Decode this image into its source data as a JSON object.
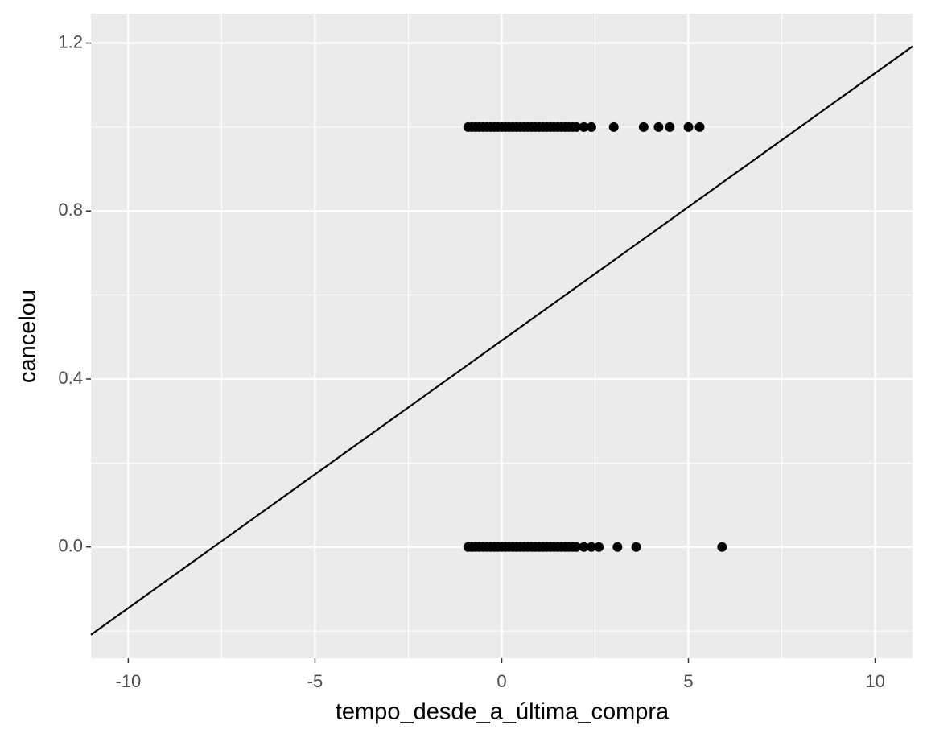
{
  "chart_data": {
    "type": "scatter",
    "x_label": "tempo_desde_a_última_compra",
    "y_label": "cancelou",
    "xlim": [
      -11,
      11
    ],
    "ylim": [
      -0.265,
      1.27
    ],
    "xticks": [
      -10,
      -5,
      0,
      5,
      10
    ],
    "yticks": [
      {
        "value": 0,
        "label": "0.0"
      },
      0.4,
      0.8,
      1.2
    ],
    "x_minor_grid": [
      -7.5,
      -2.5,
      2.5,
      7.5
    ],
    "y_minor_grid": [
      -0.2,
      0.2,
      0.6,
      1.0
    ],
    "grid": true,
    "background": "#ebebeb",
    "points": {
      "color": "#000000",
      "x": [
        -0.9,
        -0.8,
        -0.7,
        -0.6,
        -0.5,
        -0.4,
        -0.3,
        -0.2,
        -0.1,
        0,
        0.1,
        0.2,
        0.3,
        0.4,
        0.5,
        0.6,
        0.7,
        0.8,
        0.9,
        1.0,
        1.1,
        1.2,
        1.3,
        1.4,
        1.5,
        1.6,
        1.7,
        1.8,
        1.9,
        2.0,
        2.2,
        2.4,
        3.0,
        3.8,
        4.2,
        4.5,
        5.0,
        5.3,
        -0.9,
        -0.8,
        -0.7,
        -0.6,
        -0.5,
        -0.4,
        -0.3,
        -0.2,
        -0.1,
        0,
        0.1,
        0.2,
        0.3,
        0.4,
        0.5,
        0.6,
        0.7,
        0.8,
        0.9,
        1.0,
        1.1,
        1.2,
        1.3,
        1.4,
        1.5,
        1.6,
        1.7,
        1.8,
        1.9,
        2.0,
        2.2,
        2.4,
        2.6,
        3.1,
        3.6,
        5.9
      ],
      "y": [
        1,
        1,
        1,
        1,
        1,
        1,
        1,
        1,
        1,
        1,
        1,
        1,
        1,
        1,
        1,
        1,
        1,
        1,
        1,
        1,
        1,
        1,
        1,
        1,
        1,
        1,
        1,
        1,
        1,
        1,
        1,
        1,
        1,
        1,
        1,
        1,
        1,
        1,
        0,
        0,
        0,
        0,
        0,
        0,
        0,
        0,
        0,
        0,
        0,
        0,
        0,
        0,
        0,
        0,
        0,
        0,
        0,
        0,
        0,
        0,
        0,
        0,
        0,
        0,
        0,
        0,
        0,
        0,
        0,
        0,
        0,
        0,
        0,
        0
      ]
    },
    "line": {
      "color": "#000000",
      "x": [
        -11,
        11
      ],
      "y": [
        -0.209,
        1.192
      ]
    }
  }
}
